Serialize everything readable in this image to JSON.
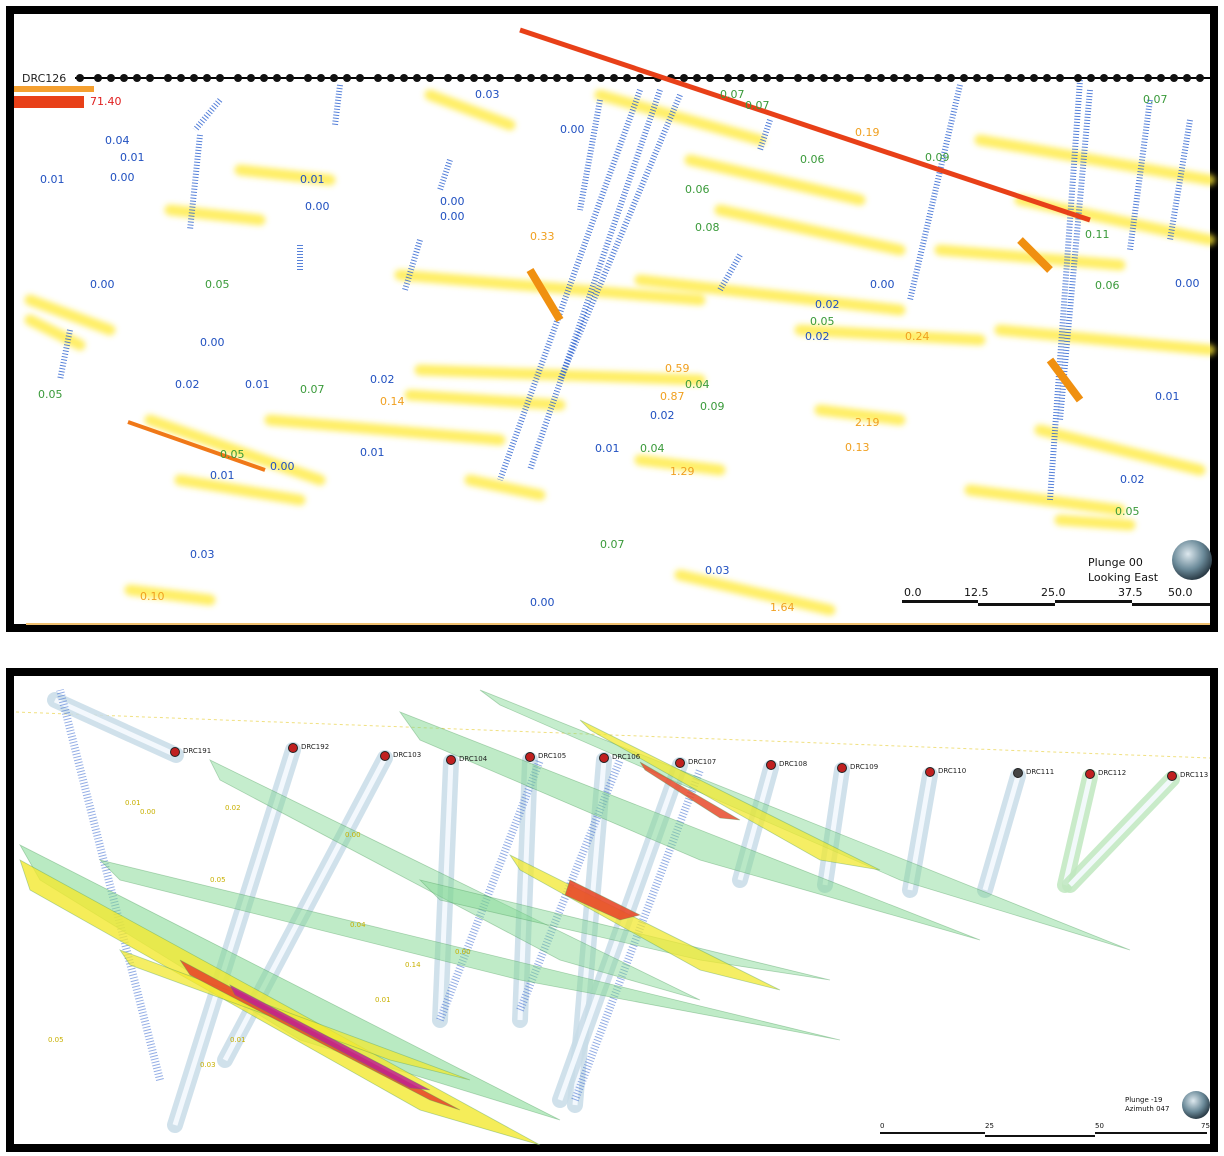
{
  "top_view": {
    "hole_label": "DRC126",
    "assays": [
      "0.01",
      "0.00",
      "0.01",
      "0.04",
      "0.01",
      "0.00",
      "0.00",
      "0.00",
      "0.00",
      "0.05",
      "0.00",
      "0.02",
      "0.01",
      "0.07",
      "0.05",
      "0.02",
      "0.14",
      "0.05",
      "0.01",
      "0.01",
      "0.00",
      "0.03",
      "0.07",
      "0.10",
      "0.00",
      "0.03",
      "1.64",
      "0.01",
      "0.04",
      "0.02",
      "0.04",
      "0.09",
      "0.59",
      "0.87",
      "1.29",
      "0.13",
      "2.19",
      "0.00",
      "0.24",
      "0.01",
      "0.05",
      "0.02",
      "0.06",
      "0.11",
      "0.09",
      "0.19",
      "0.33",
      "0.08",
      "0.06",
      "0.07",
      "0.07",
      "0.03",
      "0.00",
      "0.07",
      "71.40",
      "0.06",
      "0.02",
      "0.00",
      "0.02",
      "0.05"
    ],
    "orientation": [
      "Plunge 00",
      "Looking East"
    ],
    "scale": [
      "0.0",
      "12.5",
      "25.0",
      "37.5",
      "50.0"
    ]
  },
  "bottom_view": {
    "holes": [
      "DRC191",
      "DRC192",
      "DRC103",
      "DRC104",
      "DRC105",
      "DRC106",
      "DRC107",
      "DRC108",
      "DRC109",
      "DRC110",
      "DRC111",
      "DRC112",
      "DRC113"
    ],
    "assays": [
      "0.01",
      "0.00",
      "0.02",
      "0.00",
      "0.05",
      "0.04",
      "0.01",
      "0.03",
      "0.00",
      "0.05",
      "0.14",
      "0.01"
    ],
    "orientation": [
      "Plunge -19",
      "Azimuth 047"
    ],
    "scale": [
      "0",
      "25",
      "50",
      "75"
    ]
  }
}
